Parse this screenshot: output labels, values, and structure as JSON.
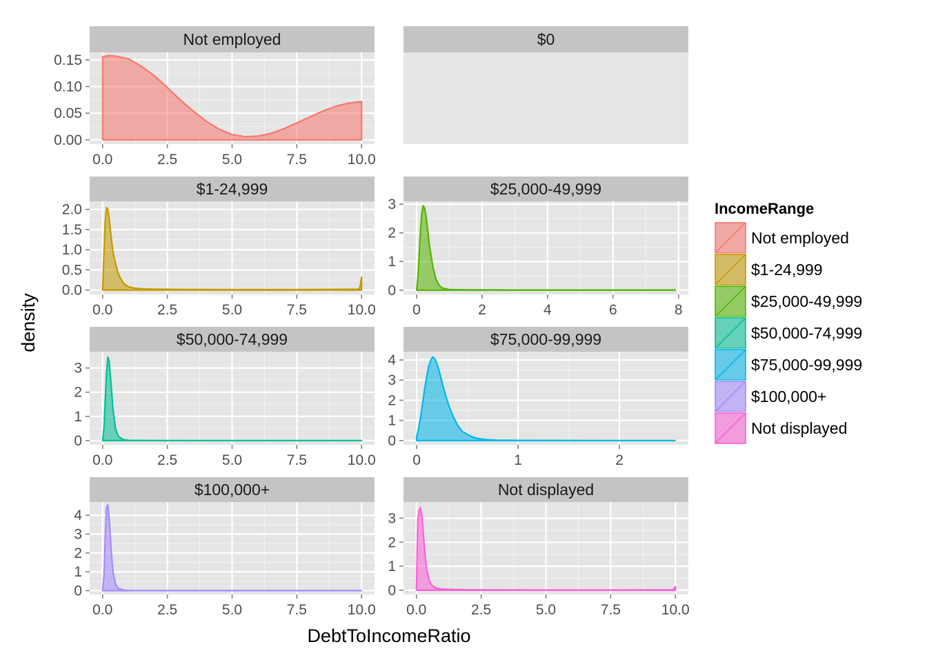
{
  "chart_data": {
    "type": "area",
    "subtype": "faceted density plot",
    "xlabel": "DebtToIncomeRatio",
    "ylabel": "density",
    "legend": {
      "title": "IncomeRange",
      "placement": "right",
      "entries": [
        {
          "label": "Not employed",
          "color": "#F8766D"
        },
        {
          "label": "$1-24,999",
          "color": "#C49A00"
        },
        {
          "label": "$25,000-49,999",
          "color": "#53B400"
        },
        {
          "label": "$50,000-74,999",
          "color": "#00C094"
        },
        {
          "label": "$75,000-99,999",
          "color": "#00B6EB"
        },
        {
          "label": "$100,000+",
          "color": "#A58AFF"
        },
        {
          "label": "Not displayed",
          "color": "#FB61D7"
        }
      ]
    },
    "grid": true,
    "panel_background": "#E5E5E5",
    "strip_background": "#C4C4C4",
    "facets": [
      {
        "title": "Not employed",
        "color": "#F8766D",
        "xlim": [
          -0.5,
          10.5
        ],
        "ylim": [
          -0.008,
          0.164
        ],
        "xticks": [
          0,
          2.5,
          5,
          7.5,
          10
        ],
        "xtick_labels": [
          "0.0",
          "2.5",
          "5.0",
          "7.5",
          "10.0"
        ],
        "yticks": [
          0,
          0.05,
          0.1,
          0.15
        ],
        "ytick_labels": [
          "0.00",
          "0.05",
          "0.10",
          "0.15"
        ],
        "x": [
          0,
          0.25,
          0.5,
          1,
          1.5,
          2,
          2.5,
          3,
          3.5,
          4,
          4.5,
          5,
          5.5,
          6,
          6.5,
          7,
          7.5,
          8,
          8.5,
          9,
          9.5,
          10
        ],
        "y": [
          0.156,
          0.158,
          0.157,
          0.152,
          0.138,
          0.12,
          0.098,
          0.075,
          0.054,
          0.035,
          0.02,
          0.01,
          0.006,
          0.007,
          0.012,
          0.021,
          0.032,
          0.043,
          0.054,
          0.063,
          0.069,
          0.072
        ]
      },
      {
        "title": "$0",
        "color": "#7F7F7F",
        "empty": true,
        "xlim": [
          0,
          1
        ],
        "ylim": [
          0,
          1
        ],
        "xticks": [],
        "xtick_labels": [],
        "yticks": [],
        "ytick_labels": [],
        "x": [],
        "y": []
      },
      {
        "title": "$1-24,999",
        "color": "#C49A00",
        "xlim": [
          -0.5,
          10.5
        ],
        "ylim": [
          -0.11,
          2.2
        ],
        "xticks": [
          0,
          2.5,
          5,
          7.5,
          10
        ],
        "xtick_labels": [
          "0.0",
          "2.5",
          "5.0",
          "7.5",
          "10.0"
        ],
        "yticks": [
          0,
          0.5,
          1,
          1.5,
          2
        ],
        "ytick_labels": [
          "0.0",
          "0.5",
          "1.0",
          "1.5",
          "2.0"
        ],
        "x": [
          0,
          0.05,
          0.1,
          0.15,
          0.2,
          0.25,
          0.3,
          0.35,
          0.4,
          0.5,
          0.6,
          0.7,
          0.8,
          0.9,
          1.0,
          1.2,
          1.5,
          2,
          3,
          5,
          7.5,
          9.9,
          9.95,
          10
        ],
        "y": [
          0.0,
          0.9,
          1.7,
          2.05,
          2.0,
          1.8,
          1.5,
          1.2,
          0.95,
          0.65,
          0.42,
          0.28,
          0.18,
          0.12,
          0.08,
          0.05,
          0.03,
          0.02,
          0.015,
          0.01,
          0.01,
          0.02,
          0.1,
          0.32
        ]
      },
      {
        "title": "$25,000-49,999",
        "color": "#53B400",
        "xlim": [
          -0.4,
          8.3
        ],
        "ylim": [
          -0.15,
          3.1
        ],
        "xticks": [
          0,
          2,
          4,
          6,
          8
        ],
        "xtick_labels": [
          "0",
          "2",
          "4",
          "6",
          "8"
        ],
        "yticks": [
          0,
          1,
          2,
          3
        ],
        "ytick_labels": [
          "0",
          "1",
          "2",
          "3"
        ],
        "x": [
          0,
          0.05,
          0.1,
          0.15,
          0.2,
          0.25,
          0.3,
          0.35,
          0.4,
          0.5,
          0.6,
          0.7,
          0.8,
          1.0,
          1.5,
          3,
          5,
          7,
          7.9
        ],
        "y": [
          0.0,
          0.6,
          1.7,
          2.6,
          2.95,
          2.85,
          2.5,
          2.0,
          1.5,
          0.8,
          0.35,
          0.15,
          0.07,
          0.02,
          0.01,
          0.005,
          0.005,
          0.005,
          0.005
        ]
      },
      {
        "title": "$50,000-74,999",
        "color": "#00C094",
        "xlim": [
          -0.5,
          10.5
        ],
        "ylim": [
          -0.175,
          3.675
        ],
        "xticks": [
          0,
          2.5,
          5,
          7.5,
          10
        ],
        "xtick_labels": [
          "0.0",
          "2.5",
          "5.0",
          "7.5",
          "10.0"
        ],
        "yticks": [
          0,
          1,
          2,
          3
        ],
        "ytick_labels": [
          "0",
          "1",
          "2",
          "3"
        ],
        "x": [
          0,
          0.05,
          0.1,
          0.15,
          0.2,
          0.25,
          0.3,
          0.35,
          0.4,
          0.5,
          0.6,
          0.8,
          1.0,
          1.5,
          3,
          6,
          10
        ],
        "y": [
          0.0,
          0.5,
          1.6,
          2.8,
          3.45,
          3.3,
          2.7,
          2.0,
          1.3,
          0.5,
          0.18,
          0.04,
          0.01,
          0.005,
          0.003,
          0.003,
          0.003
        ]
      },
      {
        "title": "$75,000-99,999",
        "color": "#00B6EB",
        "xlim": [
          -0.13,
          2.68
        ],
        "ylim": [
          -0.21,
          4.41
        ],
        "xticks": [
          0,
          1,
          2
        ],
        "xtick_labels": [
          "0",
          "1",
          "2"
        ],
        "yticks": [
          0,
          1,
          2,
          3,
          4
        ],
        "ytick_labels": [
          "0",
          "1",
          "2",
          "3",
          "4"
        ],
        "x": [
          0,
          0.02,
          0.04,
          0.06,
          0.08,
          0.1,
          0.12,
          0.14,
          0.16,
          0.18,
          0.2,
          0.22,
          0.24,
          0.26,
          0.28,
          0.3,
          0.32,
          0.34,
          0.36,
          0.38,
          0.4,
          0.42,
          0.45,
          0.5,
          0.55,
          0.6,
          0.7,
          0.8,
          1.0,
          1.5,
          2.0,
          2.55
        ],
        "y": [
          0.2,
          0.6,
          1.2,
          1.9,
          2.6,
          3.2,
          3.7,
          4.0,
          4.15,
          4.05,
          3.8,
          3.5,
          3.1,
          2.7,
          2.35,
          2.0,
          1.7,
          1.45,
          1.2,
          1.0,
          0.8,
          0.65,
          0.45,
          0.3,
          0.18,
          0.1,
          0.04,
          0.02,
          0.01,
          0.005,
          0.003,
          0.003
        ]
      },
      {
        "title": "$100,000+",
        "color": "#A58AFF",
        "xlim": [
          -0.5,
          10.5
        ],
        "ylim": [
          -0.2,
          4.7
        ],
        "xticks": [
          0,
          2.5,
          5,
          7.5,
          10
        ],
        "xtick_labels": [
          "0.0",
          "2.5",
          "5.0",
          "7.5",
          "10.0"
        ],
        "yticks": [
          0,
          1,
          2,
          3,
          4
        ],
        "ytick_labels": [
          "0",
          "1",
          "2",
          "3",
          "4"
        ],
        "x": [
          0,
          0.05,
          0.1,
          0.15,
          0.2,
          0.25,
          0.3,
          0.35,
          0.4,
          0.5,
          0.6,
          0.8,
          1.0,
          2,
          5,
          10
        ],
        "y": [
          0.0,
          0.8,
          2.8,
          4.4,
          4.55,
          3.9,
          2.8,
          1.8,
          1.0,
          0.35,
          0.12,
          0.03,
          0.01,
          0.005,
          0.003,
          0.003
        ]
      },
      {
        "title": "Not displayed",
        "color": "#FB61D7",
        "xlim": [
          -0.5,
          10.5
        ],
        "ylim": [
          -0.175,
          3.675
        ],
        "xticks": [
          0,
          2.5,
          5,
          7.5,
          10
        ],
        "xtick_labels": [
          "0.0",
          "2.5",
          "5.0",
          "7.5",
          "10.0"
        ],
        "yticks": [
          0,
          1,
          2,
          3
        ],
        "ytick_labels": [
          "0",
          "1",
          "2",
          "3"
        ],
        "x": [
          0,
          0.05,
          0.1,
          0.15,
          0.2,
          0.25,
          0.3,
          0.35,
          0.4,
          0.5,
          0.6,
          0.7,
          0.8,
          1.0,
          1.5,
          2,
          3,
          5,
          7.5,
          9.9,
          9.95,
          10
        ],
        "y": [
          0.0,
          2.9,
          3.3,
          3.45,
          3.2,
          2.6,
          1.9,
          1.3,
          0.85,
          0.4,
          0.2,
          0.12,
          0.08,
          0.05,
          0.03,
          0.02,
          0.015,
          0.01,
          0.01,
          0.02,
          0.08,
          0.15
        ]
      }
    ]
  }
}
